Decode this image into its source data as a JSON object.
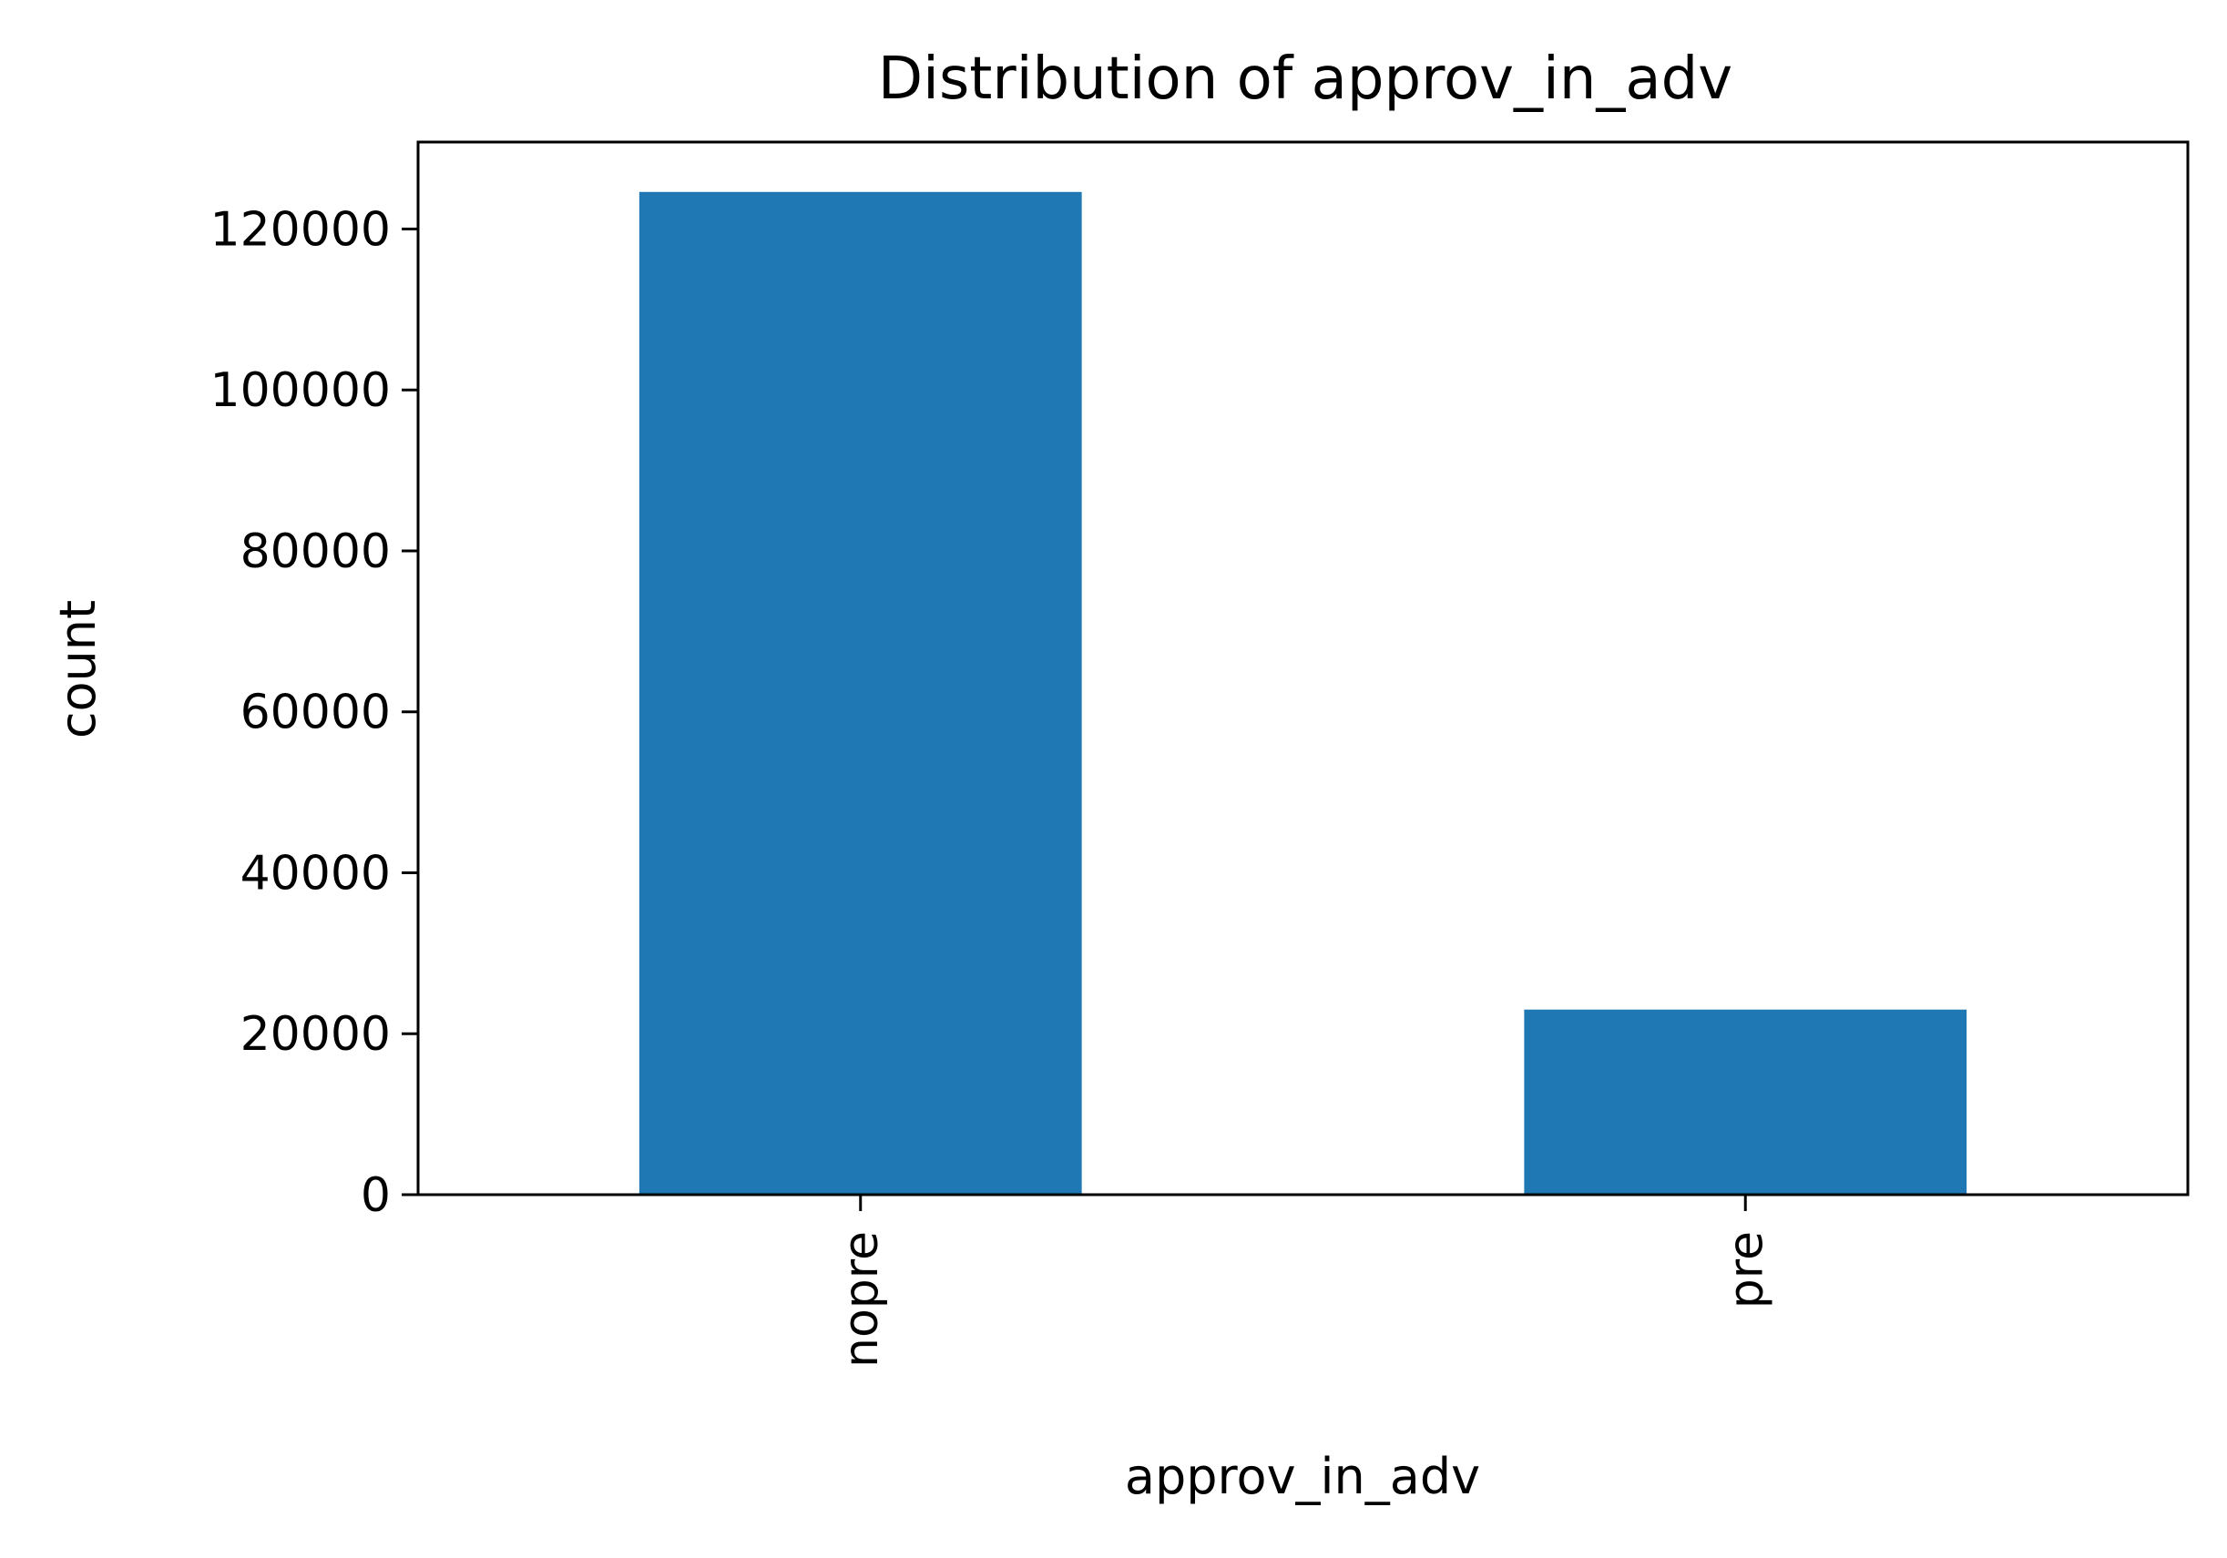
{
  "chart_data": {
    "type": "bar",
    "title": "Distribution of approv_in_adv",
    "xlabel": "approv_in_adv",
    "ylabel": "count",
    "categories": [
      "nopre",
      "pre"
    ],
    "values": [
      124600,
      23000
    ],
    "ylim": [
      0,
      130800
    ],
    "yticks": [
      0,
      20000,
      40000,
      60000,
      80000,
      100000,
      120000
    ],
    "ytick_labels": [
      "0",
      "20000",
      "40000",
      "60000",
      "80000",
      "100000",
      "120000"
    ],
    "bar_color": "#1f77b4",
    "grid": false,
    "legend": "none",
    "x_tick_rotation": "vertical"
  }
}
